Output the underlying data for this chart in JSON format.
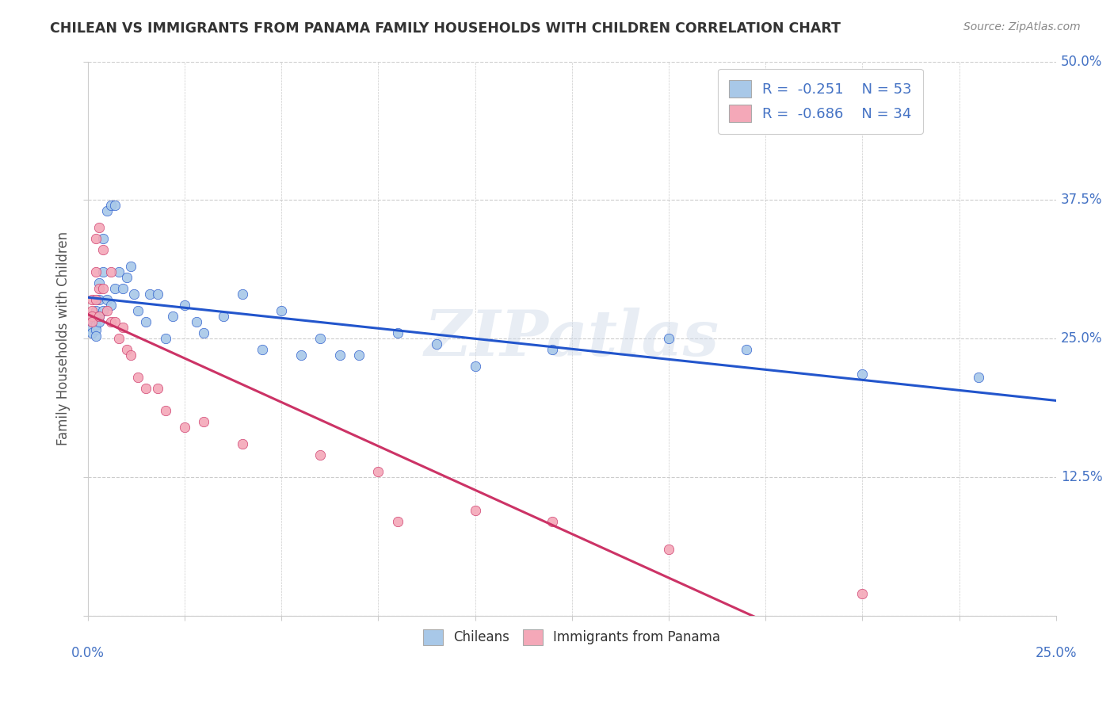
{
  "title": "CHILEAN VS IMMIGRANTS FROM PANAMA FAMILY HOUSEHOLDS WITH CHILDREN CORRELATION CHART",
  "source": "Source: ZipAtlas.com",
  "ylabel": "Family Households with Children",
  "ytick_vals": [
    0,
    0.125,
    0.25,
    0.375,
    0.5
  ],
  "ytick_labels": [
    "",
    "12.5%",
    "25.0%",
    "37.5%",
    "50.0%"
  ],
  "xlim": [
    0,
    0.25
  ],
  "ylim": [
    0,
    0.5
  ],
  "legend1_r": "-0.251",
  "legend1_n": "53",
  "legend2_r": "-0.686",
  "legend2_n": "34",
  "blue_color": "#a8c8e8",
  "pink_color": "#f4a8b8",
  "line_blue": "#2255cc",
  "line_pink": "#cc3366",
  "watermark": "ZIPatlas",
  "chileans_x": [
    0.001,
    0.001,
    0.001,
    0.001,
    0.001,
    0.002,
    0.002,
    0.002,
    0.002,
    0.002,
    0.003,
    0.003,
    0.003,
    0.003,
    0.004,
    0.004,
    0.004,
    0.005,
    0.005,
    0.006,
    0.006,
    0.007,
    0.007,
    0.008,
    0.009,
    0.01,
    0.011,
    0.012,
    0.013,
    0.015,
    0.016,
    0.018,
    0.02,
    0.022,
    0.025,
    0.028,
    0.03,
    0.035,
    0.04,
    0.045,
    0.05,
    0.055,
    0.06,
    0.065,
    0.07,
    0.08,
    0.09,
    0.1,
    0.12,
    0.15,
    0.17,
    0.2,
    0.23
  ],
  "chileans_y": [
    0.27,
    0.27,
    0.265,
    0.26,
    0.255,
    0.275,
    0.268,
    0.262,
    0.258,
    0.252,
    0.3,
    0.285,
    0.27,
    0.265,
    0.34,
    0.31,
    0.275,
    0.365,
    0.285,
    0.37,
    0.28,
    0.37,
    0.295,
    0.31,
    0.295,
    0.305,
    0.315,
    0.29,
    0.275,
    0.265,
    0.29,
    0.29,
    0.25,
    0.27,
    0.28,
    0.265,
    0.255,
    0.27,
    0.29,
    0.24,
    0.275,
    0.235,
    0.25,
    0.235,
    0.235,
    0.255,
    0.245,
    0.225,
    0.24,
    0.25,
    0.24,
    0.218,
    0.215
  ],
  "panama_x": [
    0.001,
    0.001,
    0.001,
    0.001,
    0.002,
    0.002,
    0.002,
    0.003,
    0.003,
    0.003,
    0.004,
    0.004,
    0.005,
    0.006,
    0.006,
    0.007,
    0.008,
    0.009,
    0.01,
    0.011,
    0.013,
    0.015,
    0.018,
    0.02,
    0.025,
    0.03,
    0.04,
    0.06,
    0.075,
    0.08,
    0.1,
    0.12,
    0.15,
    0.2
  ],
  "panama_y": [
    0.285,
    0.275,
    0.27,
    0.265,
    0.34,
    0.31,
    0.285,
    0.35,
    0.295,
    0.27,
    0.33,
    0.295,
    0.275,
    0.31,
    0.265,
    0.265,
    0.25,
    0.26,
    0.24,
    0.235,
    0.215,
    0.205,
    0.205,
    0.185,
    0.17,
    0.175,
    0.155,
    0.145,
    0.13,
    0.085,
    0.095,
    0.085,
    0.06,
    0.02
  ]
}
